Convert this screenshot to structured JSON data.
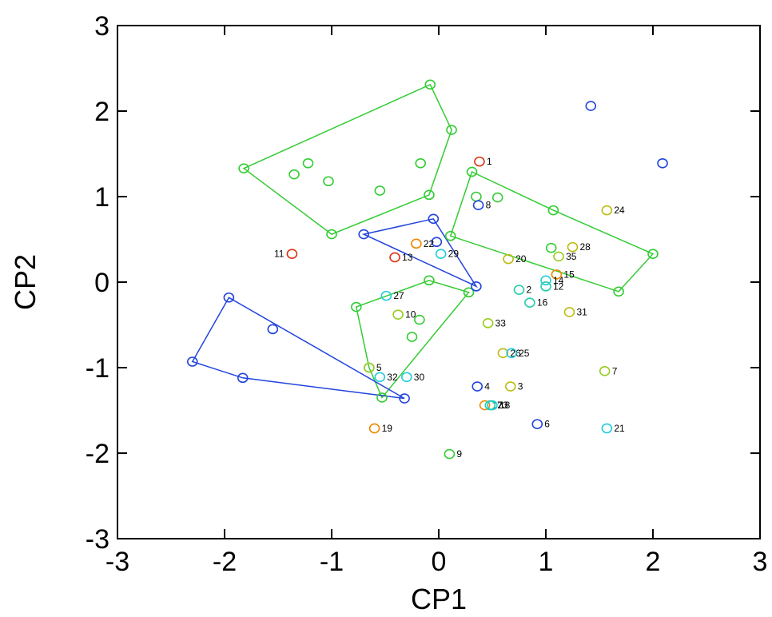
{
  "chart_data": {
    "type": "scatter",
    "title": "",
    "xlabel": "CP1",
    "ylabel": "CP2",
    "xlim": [
      -3,
      3
    ],
    "ylim": [
      -3,
      3
    ],
    "xticks": [
      -3,
      -2,
      -1,
      0,
      1,
      2,
      3
    ],
    "yticks": [
      -3,
      -2,
      -1,
      0,
      1,
      2,
      3
    ],
    "xtick_labels": [
      "-3",
      "-2",
      "-1",
      "0",
      "1",
      "2",
      "3"
    ],
    "ytick_labels": [
      "-3",
      "-2",
      "-1",
      "0",
      "1",
      "2",
      "3"
    ],
    "grid": false,
    "colors": {
      "green": "#33cc33",
      "blue": "#2244dd",
      "red": "#dd3311",
      "orange": "#ee8800",
      "yellow": "#bbbb11",
      "cyan": "#22ccdd",
      "teal": "#22ccaa",
      "lime": "#99cc22"
    },
    "hulls": [
      {
        "color": "green",
        "points": [
          [
            -1.82,
            1.33
          ],
          [
            -0.08,
            2.31
          ],
          [
            0.12,
            1.78
          ],
          [
            -0.09,
            1.02
          ],
          [
            -1.0,
            0.56
          ]
        ]
      },
      {
        "color": "green",
        "points": [
          [
            0.31,
            1.29
          ],
          [
            1.07,
            0.84
          ],
          [
            2.0,
            0.33
          ],
          [
            1.68,
            -0.11
          ],
          [
            0.11,
            0.54
          ]
        ]
      },
      {
        "color": "green",
        "points": [
          [
            -0.77,
            -0.29
          ],
          [
            -0.09,
            0.02
          ],
          [
            0.28,
            -0.12
          ],
          [
            -0.53,
            -1.35
          ],
          [
            -0.65,
            -1.0
          ]
        ]
      },
      {
        "color": "blue",
        "points": [
          [
            -0.7,
            0.56
          ],
          [
            -0.05,
            0.74
          ],
          [
            0.35,
            -0.05
          ],
          [
            0.3,
            -0.02
          ]
        ]
      },
      {
        "color": "blue",
        "points": [
          [
            -1.96,
            -0.18
          ],
          [
            -0.32,
            -1.36
          ],
          [
            -1.83,
            -1.12
          ],
          [
            -2.3,
            -0.93
          ]
        ]
      }
    ],
    "points": [
      {
        "x": -1.82,
        "y": 1.33,
        "color": "green",
        "label": ""
      },
      {
        "x": -0.08,
        "y": 2.31,
        "color": "green",
        "label": ""
      },
      {
        "x": 0.12,
        "y": 1.78,
        "color": "green",
        "label": ""
      },
      {
        "x": -0.09,
        "y": 1.02,
        "color": "green",
        "label": ""
      },
      {
        "x": -1.0,
        "y": 0.56,
        "color": "green",
        "label": ""
      },
      {
        "x": -1.35,
        "y": 1.26,
        "color": "green",
        "label": ""
      },
      {
        "x": -1.22,
        "y": 1.39,
        "color": "green",
        "label": ""
      },
      {
        "x": -1.03,
        "y": 1.18,
        "color": "green",
        "label": ""
      },
      {
        "x": -0.55,
        "y": 1.07,
        "color": "green",
        "label": ""
      },
      {
        "x": -0.17,
        "y": 1.39,
        "color": "green",
        "label": ""
      },
      {
        "x": 0.31,
        "y": 1.29,
        "color": "green",
        "label": ""
      },
      {
        "x": 0.35,
        "y": 1.0,
        "color": "green",
        "label": ""
      },
      {
        "x": 0.55,
        "y": 0.99,
        "color": "green",
        "label": ""
      },
      {
        "x": 1.07,
        "y": 0.84,
        "color": "green",
        "label": ""
      },
      {
        "x": 2.0,
        "y": 0.33,
        "color": "green",
        "label": ""
      },
      {
        "x": 1.68,
        "y": -0.11,
        "color": "green",
        "label": ""
      },
      {
        "x": 0.11,
        "y": 0.54,
        "color": "green",
        "label": ""
      },
      {
        "x": -0.77,
        "y": -0.29,
        "color": "green",
        "label": ""
      },
      {
        "x": -0.09,
        "y": 0.02,
        "color": "green",
        "label": ""
      },
      {
        "x": 0.28,
        "y": -0.12,
        "color": "green",
        "label": ""
      },
      {
        "x": -0.53,
        "y": -1.35,
        "color": "green",
        "label": ""
      },
      {
        "x": -0.65,
        "y": -1.0,
        "color": "green",
        "label": ""
      },
      {
        "x": -0.18,
        "y": -0.44,
        "color": "green",
        "label": ""
      },
      {
        "x": -0.25,
        "y": -0.64,
        "color": "green",
        "label": ""
      },
      {
        "x": 1.05,
        "y": 0.4,
        "color": "green",
        "label": ""
      },
      {
        "x": -0.7,
        "y": 0.56,
        "color": "blue",
        "label": ""
      },
      {
        "x": -0.05,
        "y": 0.74,
        "color": "blue",
        "label": ""
      },
      {
        "x": 0.35,
        "y": -0.05,
        "color": "blue",
        "label": ""
      },
      {
        "x": -0.02,
        "y": 0.47,
        "color": "blue",
        "label": ""
      },
      {
        "x": -1.96,
        "y": -0.18,
        "color": "blue",
        "label": ""
      },
      {
        "x": -1.55,
        "y": -0.55,
        "color": "blue",
        "label": ""
      },
      {
        "x": -2.3,
        "y": -0.93,
        "color": "blue",
        "label": ""
      },
      {
        "x": -1.83,
        "y": -1.12,
        "color": "blue",
        "label": ""
      },
      {
        "x": -0.32,
        "y": -1.36,
        "color": "blue",
        "label": ""
      },
      {
        "x": 1.42,
        "y": 2.06,
        "color": "blue",
        "label": ""
      },
      {
        "x": 2.09,
        "y": 1.39,
        "color": "blue",
        "label": ""
      },
      {
        "x": 0.38,
        "y": 1.41,
        "color": "red",
        "label": "1"
      },
      {
        "x": -1.37,
        "y": 0.33,
        "color": "red",
        "label": "11"
      },
      {
        "x": -0.41,
        "y": 0.29,
        "color": "red",
        "label": "13"
      },
      {
        "x": 0.37,
        "y": 0.9,
        "color": "blue",
        "label": "8"
      },
      {
        "x": -0.21,
        "y": 0.45,
        "color": "orange",
        "label": "22"
      },
      {
        "x": 0.02,
        "y": 0.33,
        "color": "cyan",
        "label": "29"
      },
      {
        "x": 0.65,
        "y": 0.27,
        "color": "yellow",
        "label": "20"
      },
      {
        "x": 1.57,
        "y": 0.84,
        "color": "yellow",
        "label": "24"
      },
      {
        "x": 1.25,
        "y": 0.41,
        "color": "yellow",
        "label": "28"
      },
      {
        "x": 1.12,
        "y": 0.3,
        "color": "lime",
        "label": "35"
      },
      {
        "x": 1.1,
        "y": 0.09,
        "color": "orange",
        "label": "15"
      },
      {
        "x": 1.0,
        "y": 0.02,
        "color": "cyan",
        "label": "14"
      },
      {
        "x": 0.75,
        "y": -0.09,
        "color": "teal",
        "label": "2"
      },
      {
        "x": 1.0,
        "y": -0.05,
        "color": "teal",
        "label": "12"
      },
      {
        "x": 0.85,
        "y": -0.24,
        "color": "teal",
        "label": "16"
      },
      {
        "x": 1.22,
        "y": -0.35,
        "color": "yellow",
        "label": "31"
      },
      {
        "x": -0.49,
        "y": -0.16,
        "color": "cyan",
        "label": "27"
      },
      {
        "x": -0.38,
        "y": -0.38,
        "color": "lime",
        "label": "10"
      },
      {
        "x": 0.46,
        "y": -0.48,
        "color": "lime",
        "label": "33"
      },
      {
        "x": 0.6,
        "y": -0.83,
        "color": "yellow",
        "label": "26"
      },
      {
        "x": 0.68,
        "y": -0.83,
        "color": "cyan",
        "label": "25"
      },
      {
        "x": -0.65,
        "y": -1.0,
        "color": "lime",
        "label": "5"
      },
      {
        "x": -0.55,
        "y": -1.11,
        "color": "cyan",
        "label": "32"
      },
      {
        "x": -0.3,
        "y": -1.11,
        "color": "cyan",
        "label": "30"
      },
      {
        "x": 1.55,
        "y": -1.04,
        "color": "lime",
        "label": "7"
      },
      {
        "x": 0.36,
        "y": -1.22,
        "color": "blue",
        "label": "4"
      },
      {
        "x": 0.67,
        "y": -1.22,
        "color": "yellow",
        "label": "3"
      },
      {
        "x": 0.43,
        "y": -1.44,
        "color": "orange",
        "label": "17"
      },
      {
        "x": 0.5,
        "y": -1.44,
        "color": "cyan",
        "label": "18"
      },
      {
        "x": 0.48,
        "y": -1.44,
        "color": "teal",
        "label": "23"
      },
      {
        "x": 0.92,
        "y": -1.66,
        "color": "blue",
        "label": "6"
      },
      {
        "x": 1.57,
        "y": -1.71,
        "color": "cyan",
        "label": "21"
      },
      {
        "x": -0.6,
        "y": -1.71,
        "color": "orange",
        "label": "19"
      },
      {
        "x": 0.1,
        "y": -2.01,
        "color": "green",
        "label": "9"
      }
    ]
  }
}
